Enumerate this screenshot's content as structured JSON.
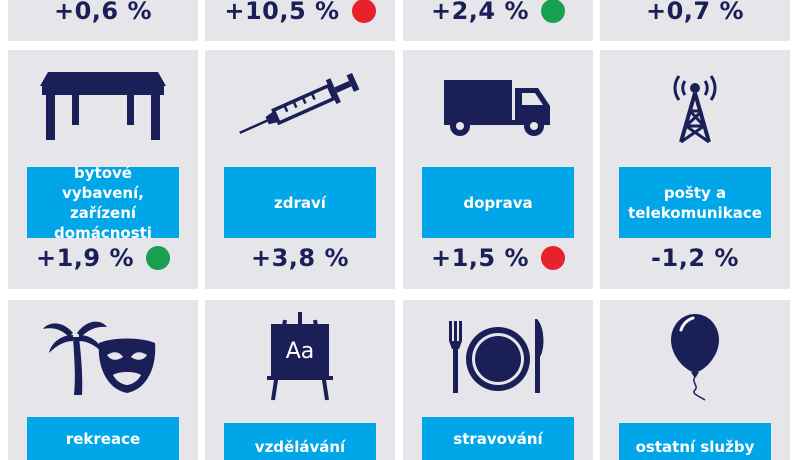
{
  "top_row": [
    {
      "value": "+0,6 %",
      "indicator": null
    },
    {
      "value": "+10,5 %",
      "indicator": "red"
    },
    {
      "value": "+2,4 %",
      "indicator": "green"
    },
    {
      "value": "+0,7 %",
      "indicator": null
    }
  ],
  "middle_row": [
    {
      "icon": "table-icon",
      "label": "bytové vybavení, zařízení domácnosti",
      "value": "+1,9 %",
      "indicator": "green"
    },
    {
      "icon": "syringe-icon",
      "label": "zdraví",
      "value": "+3,8 %",
      "indicator": null
    },
    {
      "icon": "truck-icon",
      "label": "doprava",
      "value": "+1,5 %",
      "indicator": "red"
    },
    {
      "icon": "antenna-tower-icon",
      "label": "pošty a telekomunikace",
      "value": "-1,2 %",
      "indicator": null
    }
  ],
  "bottom_row": [
    {
      "icon": "palm-mask-icon",
      "label": "rekreace"
    },
    {
      "icon": "easel-icon",
      "label": "vzdělávání",
      "easel_text": "Aa"
    },
    {
      "icon": "plate-cutlery-icon",
      "label": "stravování"
    },
    {
      "icon": "balloon-icon",
      "label": "ostatní služby"
    }
  ],
  "colors": {
    "navy": "#1b1f58",
    "label_blue": "#00a6e8",
    "card_gray": "#e6e6ea",
    "red": "#e8222d",
    "green": "#17a050"
  }
}
